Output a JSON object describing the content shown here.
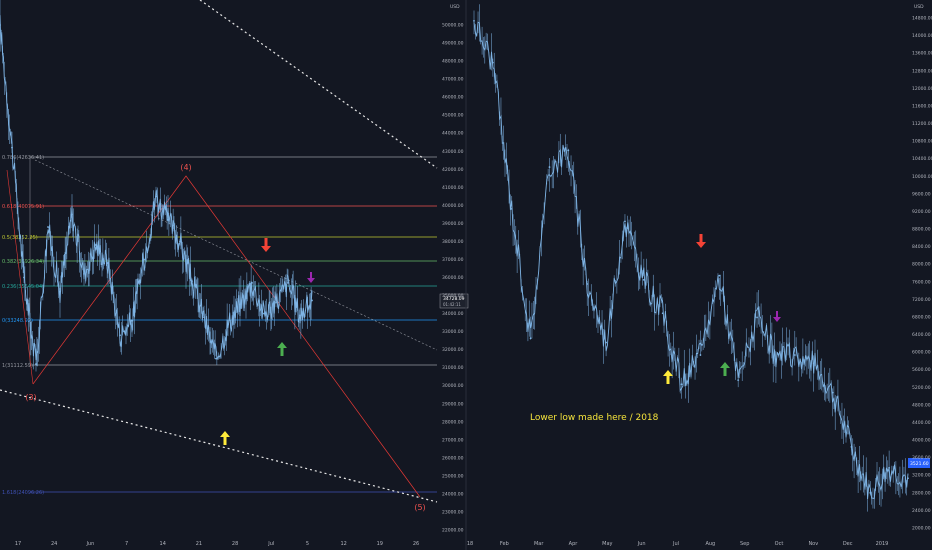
{
  "colors": {
    "background": "#131722",
    "candle": "#7fb5e6",
    "fib_gray": "#9598a1",
    "fib_red": "#ef5350",
    "fib_yellowgreen": "#c0ca33",
    "fib_green": "#66bb6a",
    "fib_teal": "#26a69a",
    "fib_blue": "#2196f3",
    "fib_darkblue": "#3f51b5",
    "arrow_red": "#f44336",
    "arrow_purple": "#9c27b0",
    "arrow_green": "#4caf50",
    "arrow_yellow": "#ffeb3b",
    "annotation_text": "#f5e43c",
    "axis_text": "#b2b5be"
  },
  "left_chart": {
    "axis_header": "USD",
    "price_label": "34728.09",
    "price_sublabel": "01:42:11",
    "wave_labels": [
      "(4)",
      "(3)",
      "(5)"
    ],
    "fib_labels": [
      "0.618(40075.91)",
      "0.5(38252.25)",
      "0.382(36926.34)",
      "0.236(35545.04)",
      "0(33248.92)",
      "1(31112.59)",
      "1.618(24096.26)",
      "0.786(42636.41)"
    ],
    "x_ticks": [
      "17",
      "24",
      "Jun",
      "7",
      "14",
      "21",
      "28",
      "Jul",
      "5",
      "12",
      "19",
      "26"
    ],
    "y_ticks": [
      "50000.00",
      "49000.00",
      "48000.00",
      "47000.00",
      "46000.00",
      "45000.00",
      "44000.00",
      "43000.00",
      "42000.00",
      "41000.00",
      "40000.00",
      "39000.00",
      "38000.00",
      "37000.00",
      "36000.00",
      "35000.00",
      "34000.00",
      "33000.00",
      "32000.00",
      "31000.00",
      "30000.00",
      "29000.00",
      "28000.00",
      "27000.00",
      "26000.00",
      "25000.00",
      "24000.00",
      "23000.00",
      "22000.00"
    ]
  },
  "right_chart": {
    "axis_header": "USD",
    "price_label": "3521.60",
    "annotation": "Lower low made here / 2018",
    "x_ticks": [
      "18",
      "Feb",
      "Mar",
      "Apr",
      "May",
      "Jun",
      "Jul",
      "Aug",
      "Sep",
      "Oct",
      "Nov",
      "Dec",
      "2019"
    ],
    "y_ticks": [
      "14800.00",
      "14000.00",
      "13600.00",
      "12800.00",
      "12000.00",
      "11600.00",
      "11200.00",
      "10800.00",
      "10400.00",
      "10000.00",
      "9600.00",
      "9200.00",
      "8800.00",
      "8400.00",
      "8000.00",
      "7600.00",
      "7200.00",
      "6800.00",
      "6400.00",
      "6000.00",
      "5600.00",
      "5200.00",
      "4800.00",
      "4400.00",
      "4000.00",
      "3600.00",
      "3200.00",
      "2800.00",
      "2400.00",
      "2000.00"
    ]
  },
  "chart_data": [
    {
      "type": "line",
      "title": "",
      "xlabel": "",
      "ylabel": "USD",
      "ylim": [
        22000,
        50000
      ],
      "series": [
        {
          "x": [
            "May 13",
            "May 17",
            "May 19",
            "May 21",
            "May 24",
            "May 26",
            "May 28",
            "May 31",
            "Jun 2",
            "Jun 4",
            "Jun 7",
            "Jun 9",
            "Jun 11",
            "Jun 14",
            "Jun 15",
            "Jun 17",
            "Jun 19",
            "Jun 21",
            "Jun 22",
            "Jun 24",
            "Jun 26",
            "Jun 28",
            "Jun 30",
            "Jul 2",
            "Jul 4",
            "Jul 6",
            "Jul 8"
          ],
          "values": [
            50000,
            43200,
            36000,
            31200,
            38800,
            35200,
            39500,
            36200,
            37800,
            36800,
            32800,
            33600,
            37000,
            40500,
            39200,
            38000,
            35800,
            33800,
            31500,
            33400,
            34500,
            35700,
            34000,
            34600,
            35700,
            33900,
            34728
          ]
        }
      ]
    },
    {
      "type": "line",
      "title": "",
      "xlabel": "",
      "ylabel": "USD",
      "ylim": [
        2000,
        15000
      ],
      "series": [
        {
          "x": [
            "Jan 2018",
            "Jan 15",
            "Feb 1",
            "Feb 6",
            "Feb 20",
            "Mar 5",
            "Mar 15",
            "Apr 1",
            "Apr 25",
            "May 15",
            "Jun 1",
            "Jun 29",
            "Jul 15",
            "Jul 25",
            "Aug 14",
            "Sep 5",
            "Sep 20",
            "Oct 15",
            "Oct 31",
            "Nov 15",
            "Nov 25",
            "Dec 15",
            "Jan 1 2019",
            "Jan 15 2019"
          ],
          "values": [
            14500,
            13500,
            10000,
            6900,
            11000,
            11400,
            8200,
            6800,
            9700,
            8300,
            7500,
            5800,
            6500,
            8400,
            5900,
            7400,
            6400,
            6500,
            6300,
            5600,
            4300,
            3200,
            3800,
            3550
          ]
        }
      ]
    }
  ]
}
